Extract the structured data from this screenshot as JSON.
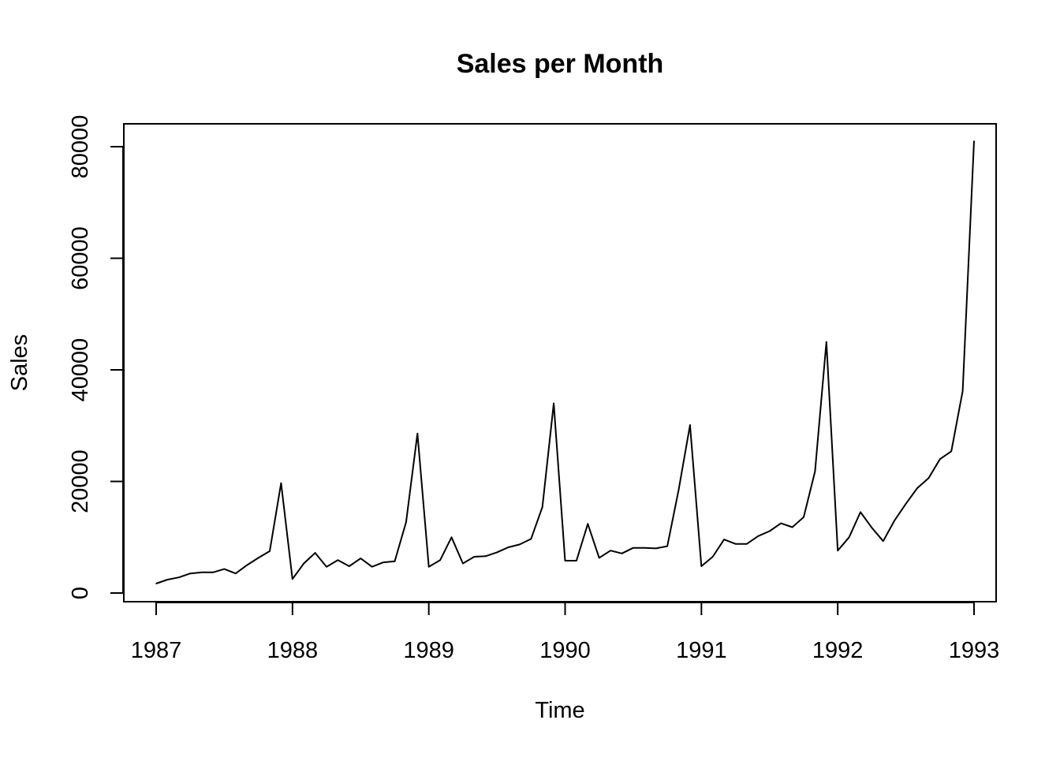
{
  "chart_data": {
    "type": "line",
    "title": "Sales per Month",
    "xlabel": "Time",
    "ylabel": "Sales",
    "xlim": [
      1987,
      1993
    ],
    "ylim": [
      0,
      80000
    ],
    "x_ticks": [
      "1987",
      "1988",
      "1989",
      "1990",
      "1991",
      "1992",
      "1993"
    ],
    "y_ticks": [
      "0",
      "20000",
      "40000",
      "60000",
      "80000"
    ],
    "grid": false,
    "legend": "none",
    "colors": {
      "line": "#000000",
      "axes": "#000000",
      "background": "#ffffff"
    },
    "series": [
      {
        "start": 1987,
        "frequency": 12,
        "values": [
          1700,
          2400,
          2800,
          3500,
          3700,
          3700,
          4300,
          3500,
          5000,
          6300,
          7500,
          19700,
          2500,
          5300,
          7200,
          4700,
          5900,
          4800,
          6200,
          4700,
          5500,
          5700,
          12700,
          28600,
          4700,
          5900,
          10000,
          5300,
          6500,
          6600,
          7300,
          8200,
          8700,
          9700,
          15400,
          34000,
          5800,
          5800,
          12400,
          6300,
          7600,
          7100,
          8100,
          8100,
          8000,
          8400,
          18500,
          30100,
          4800,
          6500,
          9600,
          8800,
          8800,
          10200,
          11100,
          12500,
          11800,
          13600,
          21800,
          45000,
          7600,
          10000,
          14500,
          11700,
          9300,
          13000,
          16000,
          18800,
          20600,
          24000,
          25400,
          36200,
          81000
        ]
      }
    ]
  }
}
